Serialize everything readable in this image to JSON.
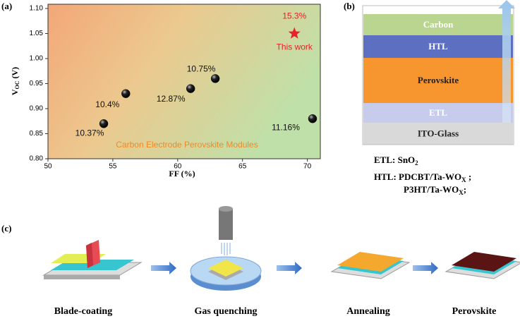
{
  "chart_data": {
    "type": "scatter",
    "panel_label": "(a)",
    "xlabel": "FF (%)",
    "ylabel": {
      "main": "V",
      "sub": "OC",
      "unit": " (V)"
    },
    "xlim": [
      50,
      71
    ],
    "xticks": [
      50,
      55,
      60,
      65,
      70
    ],
    "ylim": [
      0.8,
      1.1
    ],
    "yticks": [
      {
        "value": 0.8,
        "label": "0.80"
      },
      {
        "value": 0.85,
        "label": "0.85"
      },
      {
        "value": 0.9,
        "label": "0.90"
      },
      {
        "value": 0.95,
        "label": "0.95"
      },
      {
        "value": 1.0,
        "label": "1.00"
      },
      {
        "value": 1.05,
        "label": "1.05"
      },
      {
        "value": 1.1,
        "label": "1.10"
      }
    ],
    "annotation": "Carbon  Electrode Perovskite Modules",
    "series": [
      {
        "color": "#111111",
        "marker": "sphere",
        "x": [
          54.3,
          56.0,
          61.0,
          62.9,
          70.4
        ],
        "values": [
          0.87,
          0.93,
          0.94,
          0.96,
          0.88
        ],
        "labels": [
          "10.37%",
          "10.4%",
          "12.87%",
          "10.75%",
          "11.16%"
        ]
      },
      {
        "name": "This work",
        "color": "#e8212a",
        "marker": "star",
        "x": [
          69.0
        ],
        "values": [
          1.05
        ],
        "labels": [
          "15.3%"
        ]
      }
    ]
  },
  "panel_b": {
    "panel_label": "(b)",
    "layers": [
      {
        "label": "Carbon",
        "color": "#b9d58f"
      },
      {
        "label": "HTL",
        "color": "#5d6fc0"
      },
      {
        "label": "Perovskite",
        "color": "#f7952f"
      },
      {
        "label": "ETL",
        "color": "#c7cbec"
      },
      {
        "label": "ITO-Glass",
        "color": "#d9d9d9"
      }
    ],
    "notes": [
      {
        "main": "ETL: SnO",
        "sub": "2",
        "rest": ""
      },
      {
        "main": "HTL: PDCBT/Ta-WO",
        "sub": "X",
        "rest": " ;"
      },
      {
        "main": "P3HT/Ta-WO",
        "sub": "X",
        "rest": ";"
      }
    ]
  },
  "panel_c": {
    "panel_label": "(c)",
    "steps": [
      "Blade-coating",
      "Gas quenching",
      "Annealing",
      "Perovskite"
    ]
  }
}
